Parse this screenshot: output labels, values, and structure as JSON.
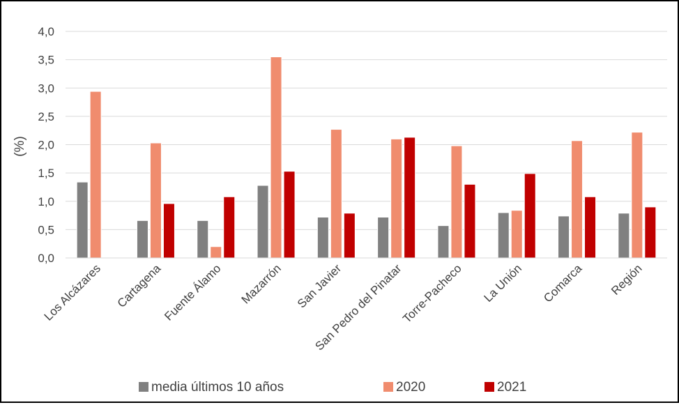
{
  "chart_data": {
    "type": "bar",
    "title": "",
    "xlabel": "",
    "ylabel": "(%)",
    "ylim": [
      0,
      4
    ],
    "yticks": [
      "0,0",
      "0,5",
      "1,0",
      "1,5",
      "2,0",
      "2,5",
      "3,0",
      "3,5",
      "4,0"
    ],
    "grid": true,
    "legend_position": "bottom",
    "categories": [
      "Los Alcázares",
      "Cartagena",
      "Fuente Álamo",
      "Mazarrón",
      "San Javier",
      "San Pedro del Pinatar",
      "Torre-Pacheco",
      "La Unión",
      "Comarca",
      "Región"
    ],
    "series": [
      {
        "name": "media últimos 10 años",
        "color": "#808080",
        "values": [
          1.34,
          0.66,
          0.66,
          1.28,
          0.72,
          0.72,
          0.57,
          0.8,
          0.74,
          0.79
        ]
      },
      {
        "name": "2020",
        "color": "#f08c6e",
        "values": [
          2.94,
          2.03,
          0.2,
          3.55,
          2.27,
          2.1,
          1.98,
          0.84,
          2.07,
          2.22
        ]
      },
      {
        "name": "2021",
        "color": "#c00000",
        "values": [
          null,
          0.96,
          1.08,
          1.53,
          0.79,
          2.13,
          1.3,
          1.49,
          1.08,
          0.9
        ]
      }
    ]
  }
}
